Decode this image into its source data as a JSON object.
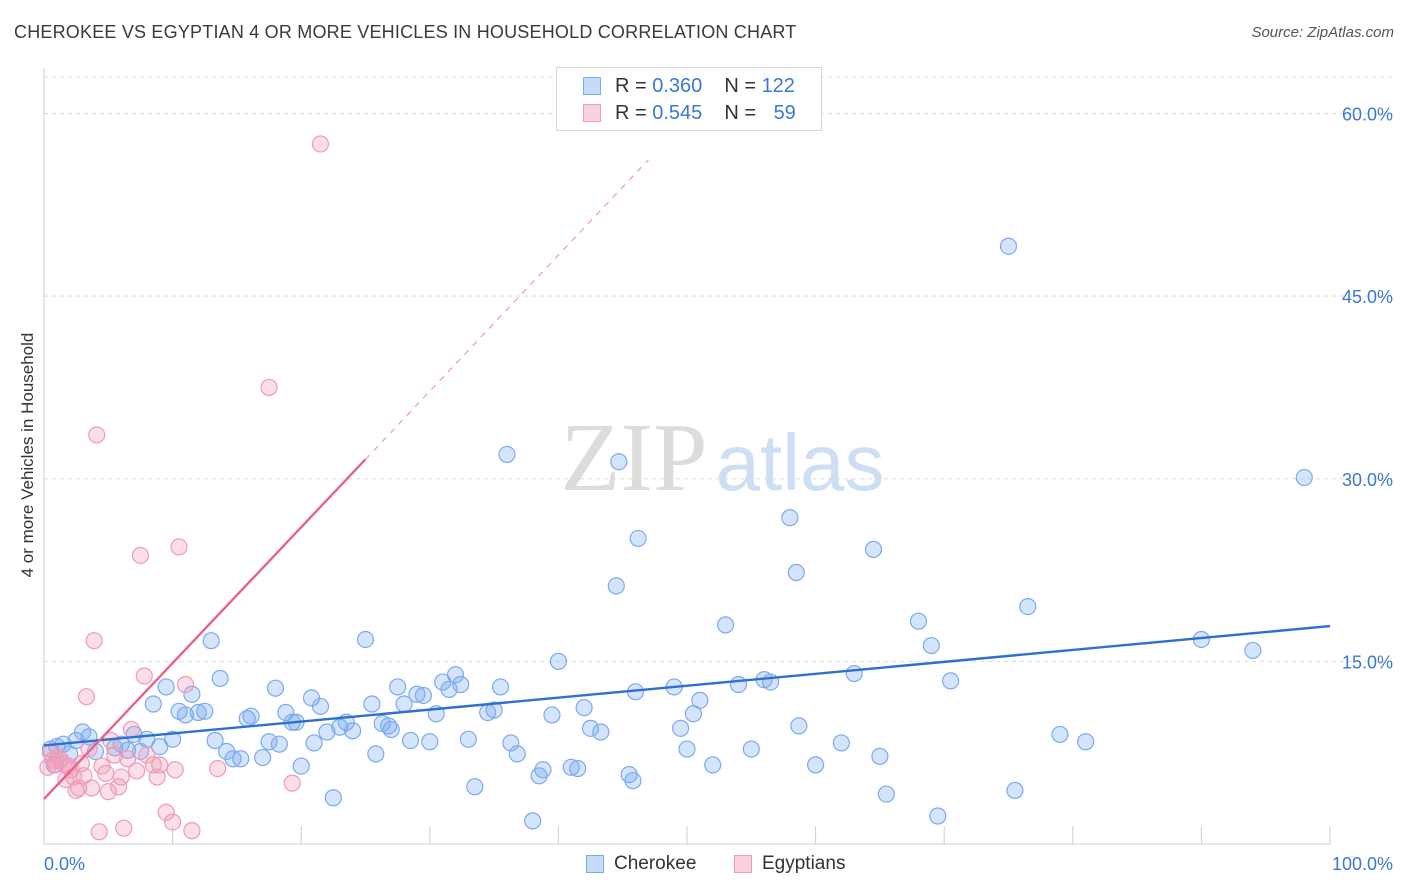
{
  "title": "CHEROKEE VS EGYPTIAN 4 OR MORE VEHICLES IN HOUSEHOLD CORRELATION CHART",
  "source": "Source: ZipAtlas.com",
  "watermark": {
    "part1": "ZIP",
    "part2": "atlas"
  },
  "legend_stats": [
    {
      "r_label": "R =",
      "r_value": "0.360",
      "n_label": "N =",
      "n_value": "122",
      "color": "#7aaaf0"
    },
    {
      "r_label": "R =",
      "r_value": "0.545",
      "n_label": "N =",
      "n_value": "59",
      "color": "#f09ab8"
    }
  ],
  "chart_data": {
    "type": "scatter",
    "title": "CHEROKEE VS EGYPTIAN 4 OR MORE VEHICLES IN HOUSEHOLD CORRELATION CHART",
    "xlabel": "",
    "ylabel": "4 or more Vehicles in Household",
    "xlim": [
      0,
      100
    ],
    "ylim": [
      0,
      63
    ],
    "x_tick_labels": [
      "0.0%",
      "100.0%"
    ],
    "y_ticks": [
      15,
      30,
      45,
      60
    ],
    "y_tick_labels": [
      "15.0%",
      "30.0%",
      "45.0%",
      "60.0%"
    ],
    "grid": true,
    "legend_position": "bottom-center",
    "series": [
      {
        "name": "Cherokee",
        "color": "#7aaaf0",
        "line_color": "#2e6fd0",
        "trend": {
          "x": [
            0,
            100
          ],
          "y": [
            8.1,
            17.9
          ],
          "style": "solid"
        },
        "points": [
          [
            0.5,
            7.8
          ],
          [
            0.8,
            6.5
          ],
          [
            1.0,
            8.0
          ],
          [
            1.5,
            8.2
          ],
          [
            2.0,
            7.4
          ],
          [
            2.5,
            8.5
          ],
          [
            3.0,
            9.2
          ],
          [
            3.5,
            8.8
          ],
          [
            4.0,
            7.6
          ],
          [
            5.5,
            7.9
          ],
          [
            6.0,
            8.2
          ],
          [
            6.5,
            7.7
          ],
          [
            7.0,
            9.0
          ],
          [
            7.5,
            7.6
          ],
          [
            8.0,
            8.6
          ],
          [
            8.5,
            11.5
          ],
          [
            9.0,
            8.0
          ],
          [
            9.5,
            12.9
          ],
          [
            10.0,
            8.6
          ],
          [
            10.5,
            10.9
          ],
          [
            11.0,
            10.6
          ],
          [
            11.5,
            12.3
          ],
          [
            12.0,
            10.8
          ],
          [
            12.5,
            10.9
          ],
          [
            13.0,
            16.7
          ],
          [
            13.3,
            8.5
          ],
          [
            13.7,
            13.6
          ],
          [
            14.2,
            7.6
          ],
          [
            14.7,
            7.0
          ],
          [
            15.3,
            7.0
          ],
          [
            15.8,
            10.3
          ],
          [
            16.1,
            10.5
          ],
          [
            17.0,
            7.1
          ],
          [
            17.5,
            8.4
          ],
          [
            18.0,
            12.8
          ],
          [
            18.3,
            8.2
          ],
          [
            18.8,
            10.8
          ],
          [
            19.3,
            10.0
          ],
          [
            19.6,
            10.0
          ],
          [
            20.0,
            6.4
          ],
          [
            20.8,
            12.0
          ],
          [
            21.0,
            8.3
          ],
          [
            21.5,
            11.3
          ],
          [
            22.0,
            9.2
          ],
          [
            22.5,
            3.8
          ],
          [
            23.0,
            9.6
          ],
          [
            23.5,
            10.0
          ],
          [
            24.0,
            9.3
          ],
          [
            25.0,
            16.8
          ],
          [
            25.5,
            11.5
          ],
          [
            25.8,
            7.4
          ],
          [
            26.3,
            9.9
          ],
          [
            26.8,
            9.7
          ],
          [
            27.0,
            9.4
          ],
          [
            27.5,
            12.9
          ],
          [
            28.0,
            11.5
          ],
          [
            28.5,
            8.5
          ],
          [
            29.0,
            12.3
          ],
          [
            29.5,
            12.2
          ],
          [
            30.0,
            8.4
          ],
          [
            30.5,
            10.7
          ],
          [
            31.0,
            13.3
          ],
          [
            31.5,
            12.7
          ],
          [
            32.0,
            13.9
          ],
          [
            32.4,
            13.1
          ],
          [
            33.0,
            8.6
          ],
          [
            33.5,
            4.7
          ],
          [
            34.5,
            10.8
          ],
          [
            35.0,
            11.0
          ],
          [
            35.5,
            12.9
          ],
          [
            36.0,
            32.0
          ],
          [
            36.3,
            8.3
          ],
          [
            36.8,
            7.4
          ],
          [
            38.0,
            1.9
          ],
          [
            38.5,
            5.6
          ],
          [
            38.8,
            6.1
          ],
          [
            39.5,
            10.6
          ],
          [
            40.0,
            15.0
          ],
          [
            41.0,
            6.3
          ],
          [
            41.5,
            6.2
          ],
          [
            42.0,
            11.2
          ],
          [
            42.5,
            9.5
          ],
          [
            43.3,
            9.2
          ],
          [
            44.5,
            21.2
          ],
          [
            44.7,
            31.4
          ],
          [
            45.5,
            5.7
          ],
          [
            45.8,
            5.2
          ],
          [
            46.0,
            12.5
          ],
          [
            46.2,
            25.1
          ],
          [
            49.0,
            12.9
          ],
          [
            49.5,
            9.5
          ],
          [
            50.0,
            7.8
          ],
          [
            50.5,
            10.7
          ],
          [
            51.0,
            11.8
          ],
          [
            52.0,
            6.5
          ],
          [
            53.0,
            18.0
          ],
          [
            54.0,
            13.1
          ],
          [
            55.0,
            7.8
          ],
          [
            56.0,
            13.5
          ],
          [
            56.5,
            13.3
          ],
          [
            58.0,
            26.8
          ],
          [
            58.5,
            22.3
          ],
          [
            58.7,
            9.7
          ],
          [
            60.0,
            6.5
          ],
          [
            62.0,
            8.3
          ],
          [
            63.0,
            14.0
          ],
          [
            64.5,
            24.2
          ],
          [
            65.0,
            7.2
          ],
          [
            65.5,
            4.1
          ],
          [
            68.0,
            18.3
          ],
          [
            69.0,
            16.3
          ],
          [
            69.5,
            2.3
          ],
          [
            70.5,
            13.4
          ],
          [
            75.0,
            49.1
          ],
          [
            75.5,
            4.4
          ],
          [
            76.5,
            19.5
          ],
          [
            79.0,
            9.0
          ],
          [
            81.0,
            8.4
          ],
          [
            90.0,
            16.8
          ],
          [
            94.0,
            15.9
          ],
          [
            98.0,
            30.1
          ]
        ]
      },
      {
        "name": "Egyptians",
        "color": "#f09ab8",
        "line_color": "#e8628e",
        "trend": {
          "x": [
            0,
            25
          ],
          "y": [
            3.7,
            31.6
          ],
          "style": "solid"
        },
        "trend_extension": {
          "x": [
            25,
            47
          ],
          "y": [
            31.6,
            56.2
          ],
          "style": "dashed"
        },
        "points": [
          [
            0.3,
            6.3
          ],
          [
            0.5,
            7.5
          ],
          [
            0.7,
            6.9
          ],
          [
            0.9,
            6.5
          ],
          [
            1.1,
            7.2
          ],
          [
            1.3,
            6.9
          ],
          [
            1.5,
            6.6
          ],
          [
            1.7,
            5.3
          ],
          [
            1.9,
            6.4
          ],
          [
            2.1,
            6.1
          ],
          [
            2.3,
            5.5
          ],
          [
            2.5,
            4.4
          ],
          [
            2.7,
            4.6
          ],
          [
            2.9,
            6.6
          ],
          [
            3.1,
            5.6
          ],
          [
            3.3,
            12.1
          ],
          [
            3.5,
            7.8
          ],
          [
            3.7,
            4.6
          ],
          [
            3.9,
            16.7
          ],
          [
            4.1,
            33.6
          ],
          [
            4.3,
            1.0
          ],
          [
            4.5,
            6.4
          ],
          [
            4.8,
            5.8
          ],
          [
            5.0,
            4.3
          ],
          [
            5.2,
            8.5
          ],
          [
            5.5,
            7.3
          ],
          [
            5.8,
            4.7
          ],
          [
            6.0,
            5.5
          ],
          [
            6.2,
            1.3
          ],
          [
            6.5,
            7.0
          ],
          [
            6.8,
            9.4
          ],
          [
            7.2,
            6.0
          ],
          [
            7.5,
            23.7
          ],
          [
            7.8,
            13.8
          ],
          [
            8.0,
            7.3
          ],
          [
            8.5,
            6.5
          ],
          [
            8.8,
            5.5
          ],
          [
            9.0,
            6.5
          ],
          [
            9.5,
            2.6
          ],
          [
            10.0,
            1.8
          ],
          [
            10.2,
            6.1
          ],
          [
            10.5,
            24.4
          ],
          [
            11.0,
            13.1
          ],
          [
            11.5,
            1.1
          ],
          [
            13.5,
            6.2
          ],
          [
            17.5,
            37.5
          ],
          [
            19.3,
            5.0
          ],
          [
            21.5,
            57.5
          ]
        ]
      }
    ]
  }
}
